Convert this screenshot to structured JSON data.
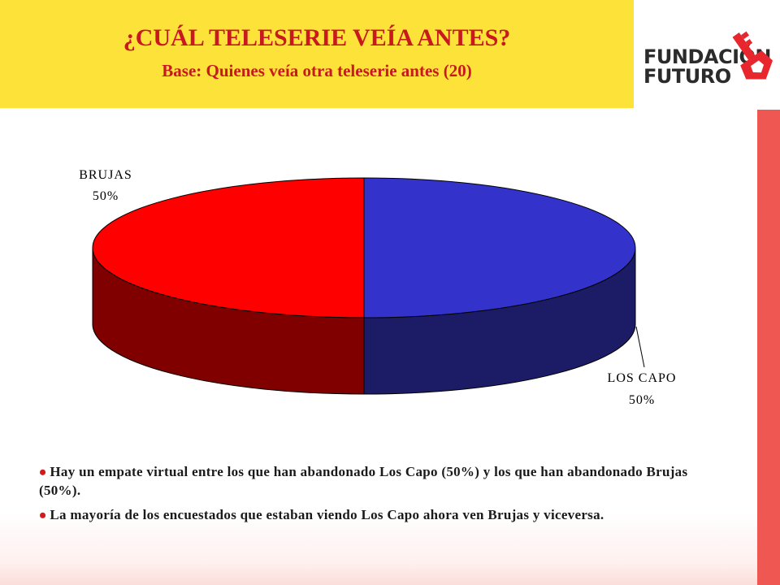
{
  "header": {
    "title": "¿CUÁL TELESERIE VEÍA ANTES?",
    "subtitle": "Base: Quienes veía otra teleserie antes (20)"
  },
  "logo": {
    "line1": "FUNDACIÓN",
    "line2": "FUTURO"
  },
  "chart_data": {
    "type": "pie",
    "title": "",
    "categories": [
      "LOS CAPO",
      "BRUJAS"
    ],
    "values": [
      50,
      50
    ],
    "labels": [
      "50%",
      "50%"
    ],
    "colors": [
      "#3333cc",
      "#ff0000"
    ],
    "side_colors": [
      "#1c1c66",
      "#800000"
    ]
  },
  "bullets": [
    "Hay un empate virtual entre los que han abandonado Los Capo (50%) y los que han abandonado Brujas (50%).",
    "La mayoría de los encuestados que estaban viendo Los Capo ahora ven Brujas y viceversa."
  ]
}
